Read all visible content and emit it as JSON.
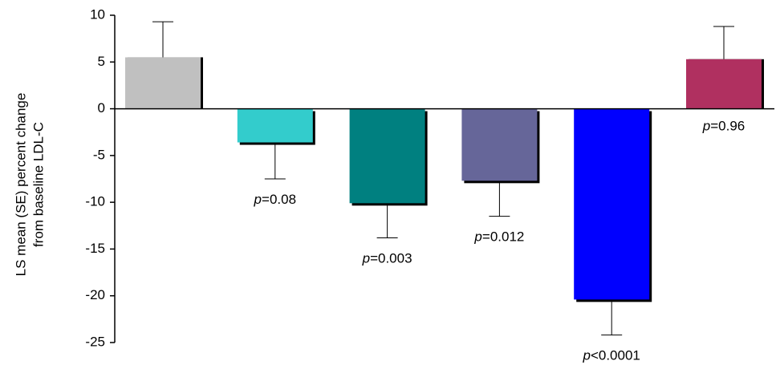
{
  "chart_data": {
    "type": "bar",
    "ylabel": [
      "LS mean (SE) percent change",
      "from baseline LDL-C"
    ],
    "categories": [
      null,
      null,
      null,
      null,
      null,
      null
    ],
    "values": [
      5.5,
      -3.6,
      -10.1,
      -7.7,
      -20.4,
      5.3
    ],
    "errors": [
      3.8,
      3.9,
      3.7,
      3.8,
      3.8,
      3.5
    ],
    "colors": [
      "#c0c0c0",
      "#33cccc",
      "#008080",
      "#666699",
      "#0000ff",
      "#b03060"
    ],
    "annotations": [
      null,
      "p=0.08",
      "p=0.003",
      "p=0.012",
      "p<0.0001",
      "p=0.96"
    ],
    "ylim": [
      -25,
      10
    ],
    "yticks": [
      10,
      5,
      0,
      -5,
      -10,
      -15,
      -20,
      -25
    ]
  }
}
